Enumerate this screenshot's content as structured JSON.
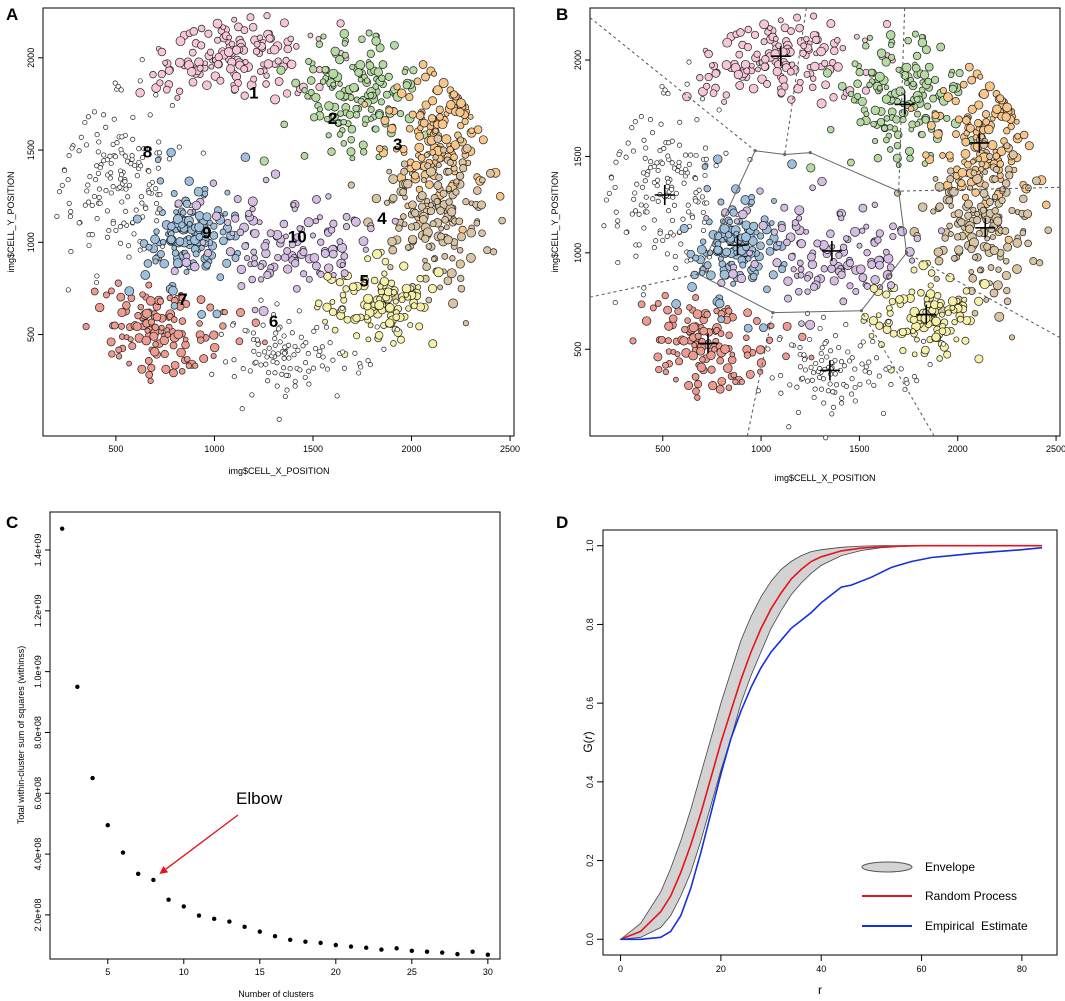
{
  "panels": {
    "a": "A",
    "b": "B",
    "c": "C",
    "d": "D"
  },
  "colors": {
    "c1": "#f7c6d9",
    "c2": "#b5dba2",
    "c3": "#f8c689",
    "c4": "#d9c5a4",
    "c5": "#f7f1a8",
    "c6": "#ffffff",
    "c7": "#ee9a8f",
    "c8": "#ffffff",
    "c9": "#9ec0dd",
    "c10": "#d6bde3",
    "random": "#e8141b",
    "empirical": "#1430e0",
    "envelope": "#d3d3d3",
    "arrow": "#e8141b"
  },
  "chart_data": [
    {
      "type": "scatter",
      "panel": "A",
      "title": "",
      "xlabel": "img$CELL_X_POSITION",
      "ylabel": "img$CELL_Y_POSITION",
      "xlim": [
        130,
        2520
      ],
      "ylim": [
        -50,
        2270
      ],
      "xticks": [
        "500",
        "1000",
        "1500",
        "2000",
        "2500"
      ],
      "xtick_values": [
        500,
        1000,
        1500,
        2000,
        2500
      ],
      "yticks": [
        "500",
        "1000",
        "1500",
        "2000"
      ],
      "ytick_values": [
        500,
        1000,
        1500,
        2000
      ],
      "clusters": [
        {
          "label": "1",
          "cx": 1120,
          "cy": 2010,
          "sx": 230,
          "sy": 110,
          "n": 150,
          "color": "c1",
          "label_x": 1200,
          "label_y": 1780
        },
        {
          "label": "2",
          "cx": 1730,
          "cy": 1760,
          "sx": 150,
          "sy": 170,
          "n": 150,
          "color": "c2",
          "label_x": 1600,
          "label_y": 1640
        },
        {
          "label": "3",
          "cx": 2110,
          "cy": 1560,
          "sx": 120,
          "sy": 190,
          "n": 150,
          "color": "c3",
          "label_x": 1930,
          "label_y": 1500
        },
        {
          "label": "4",
          "cx": 2140,
          "cy": 1130,
          "sx": 140,
          "sy": 190,
          "n": 150,
          "color": "c4",
          "label_x": 1850,
          "label_y": 1100
        },
        {
          "label": "5",
          "cx": 1850,
          "cy": 680,
          "sx": 140,
          "sy": 110,
          "n": 120,
          "color": "c5",
          "label_x": 1760,
          "label_y": 760
        },
        {
          "label": "6",
          "cx": 1360,
          "cy": 400,
          "sx": 190,
          "sy": 110,
          "n": 110,
          "color": "c6",
          "label_x": 1300,
          "label_y": 540
        },
        {
          "label": "7",
          "cx": 740,
          "cy": 540,
          "sx": 170,
          "sy": 130,
          "n": 130,
          "color": "c7",
          "label_x": 840,
          "label_y": 660
        },
        {
          "label": "8",
          "cx": 500,
          "cy": 1300,
          "sx": 150,
          "sy": 240,
          "n": 160,
          "color": "c8",
          "label_x": 660,
          "label_y": 1460
        },
        {
          "label": "9",
          "cx": 880,
          "cy": 1040,
          "sx": 130,
          "sy": 140,
          "n": 140,
          "color": "c9",
          "label_x": 960,
          "label_y": 1020
        },
        {
          "label": "10",
          "cx": 1360,
          "cy": 1010,
          "sx": 220,
          "sy": 150,
          "n": 120,
          "color": "c10",
          "label_x": 1420,
          "label_y": 1000
        }
      ]
    },
    {
      "type": "scatter",
      "panel": "B",
      "title": "",
      "xlabel": "img$CELL_X_POSITION",
      "ylabel": "img$CELL_Y_POSITION",
      "xlim": [
        130,
        2520
      ],
      "ylim": [
        50,
        2270
      ],
      "xticks": [
        "500",
        "1000",
        "1500",
        "2000",
        "2500"
      ],
      "xtick_values": [
        500,
        1000,
        1500,
        2000,
        2500
      ],
      "yticks": [
        "500",
        "1000",
        "1500",
        "2000"
      ],
      "ytick_values": [
        500,
        1000,
        1500,
        2000
      ],
      "centroids": [
        [
          1100,
          2020
        ],
        [
          1730,
          1770
        ],
        [
          2110,
          1570
        ],
        [
          2140,
          1130
        ],
        [
          1840,
          680
        ],
        [
          1350,
          390
        ],
        [
          730,
          530
        ],
        [
          510,
          1300
        ],
        [
          880,
          1040
        ],
        [
          1360,
          1010
        ]
      ],
      "hull": [
        [
          680,
          890
        ],
        [
          970,
          1530
        ],
        [
          1120,
          1510
        ],
        [
          1250,
          1520
        ],
        [
          1700,
          1320
        ],
        [
          1740,
          1000
        ],
        [
          1510,
          700
        ],
        [
          1060,
          690
        ],
        [
          680,
          890
        ]
      ],
      "voronoi_edges": [
        [
          [
            130,
            2220
          ],
          [
            970,
            1530
          ]
        ],
        [
          [
            1230,
            2270
          ],
          [
            1120,
            1510
          ]
        ],
        [
          [
            1730,
            2270
          ],
          [
            1700,
            1320
          ]
        ],
        [
          [
            2520,
            1340
          ],
          [
            1700,
            1320
          ]
        ],
        [
          [
            2520,
            560
          ],
          [
            1740,
            1000
          ]
        ],
        [
          [
            1880,
            50
          ],
          [
            1510,
            700
          ]
        ],
        [
          [
            930,
            50
          ],
          [
            1060,
            690
          ]
        ],
        [
          [
            130,
            770
          ],
          [
            680,
            890
          ]
        ]
      ]
    },
    {
      "type": "scatter",
      "panel": "C",
      "title": "",
      "xlabel": "Number of clusters",
      "ylabel": "Total within-cluster sum of squares (withinss)",
      "xlim": [
        1.2,
        30.8
      ],
      "ylim": [
        55000000,
        1525000000
      ],
      "xticks": [
        "5",
        "10",
        "15",
        "20",
        "25",
        "30"
      ],
      "xtick_values": [
        5,
        10,
        15,
        20,
        25,
        30
      ],
      "yticks": [
        "2.0e+08",
        "4.0e+08",
        "6.0e+08",
        "8.0e+08",
        "1.0e+09",
        "1.2e+09",
        "1.4e+09"
      ],
      "ytick_values": [
        200000000,
        400000000,
        600000000,
        800000000,
        1000000000,
        1200000000,
        1400000000
      ],
      "x": [
        2,
        3,
        4,
        5,
        6,
        7,
        8,
        9,
        10,
        11,
        12,
        13,
        14,
        15,
        16,
        17,
        18,
        19,
        20,
        21,
        22,
        23,
        24,
        25,
        26,
        27,
        28,
        29,
        30
      ],
      "y": [
        1470000000,
        950000000,
        650000000,
        495000000,
        405000000,
        335000000,
        315000000,
        250000000,
        228000000,
        198000000,
        187000000,
        178000000,
        161000000,
        145000000,
        130000000,
        118000000,
        112000000,
        108000000,
        101000000,
        96000000,
        92000000,
        86000000,
        90000000,
        82000000,
        79000000,
        76000000,
        71000000,
        79000000,
        69000000
      ],
      "annotation": {
        "text": "Elbow",
        "x": 8,
        "y": 315000000
      }
    },
    {
      "type": "line",
      "panel": "D",
      "title": "",
      "xlabel": "r",
      "ylabel_prefix": "G(",
      "ylabel_var": "r",
      "ylabel_suffix": ")",
      "xlim": [
        -3.5,
        87
      ],
      "ylim": [
        -0.04,
        1.04
      ],
      "xticks": [
        "0",
        "20",
        "40",
        "60",
        "80"
      ],
      "xtick_values": [
        0,
        20,
        40,
        60,
        80
      ],
      "yticks": [
        "0.0",
        "0.2",
        "0.4",
        "0.6",
        "0.8",
        "1.0"
      ],
      "ytick_values": [
        0,
        0.2,
        0.4,
        0.6,
        0.8,
        1.0
      ],
      "series": [
        {
          "name": "Random Process",
          "color": "random",
          "x": [
            0,
            4,
            8,
            10,
            12,
            14,
            16,
            18,
            20,
            22,
            24,
            26,
            28,
            30,
            32,
            34,
            36,
            38,
            40,
            44,
            48,
            52,
            56,
            60,
            70,
            84
          ],
          "y": [
            0,
            0.02,
            0.07,
            0.11,
            0.17,
            0.24,
            0.32,
            0.41,
            0.5,
            0.58,
            0.66,
            0.73,
            0.79,
            0.84,
            0.88,
            0.915,
            0.94,
            0.96,
            0.972,
            0.987,
            0.994,
            0.997,
            0.999,
            1.0,
            1.0,
            1.0
          ]
        },
        {
          "name": "Empirical Estimate",
          "color": "empirical",
          "x": [
            0,
            4,
            8,
            10,
            12,
            14,
            16,
            18,
            20,
            22,
            24,
            26,
            28,
            30,
            32,
            34,
            36,
            38,
            40,
            42,
            44,
            46,
            50,
            54,
            58,
            62,
            66,
            70,
            75,
            80,
            84
          ],
          "y": [
            0,
            0,
            0.005,
            0.02,
            0.06,
            0.13,
            0.22,
            0.32,
            0.42,
            0.51,
            0.58,
            0.64,
            0.69,
            0.73,
            0.76,
            0.79,
            0.81,
            0.83,
            0.855,
            0.875,
            0.895,
            0.9,
            0.92,
            0.945,
            0.96,
            0.97,
            0.975,
            0.98,
            0.985,
            0.99,
            0.995
          ]
        }
      ],
      "envelope": {
        "name": "Envelope",
        "x": [
          0,
          4,
          8,
          10,
          12,
          14,
          16,
          18,
          20,
          22,
          24,
          26,
          28,
          30,
          32,
          34,
          36,
          38,
          40,
          44,
          48,
          52,
          56,
          60,
          70,
          84
        ],
        "lower": [
          0,
          0.005,
          0.03,
          0.06,
          0.11,
          0.17,
          0.25,
          0.34,
          0.43,
          0.51,
          0.6,
          0.67,
          0.73,
          0.79,
          0.835,
          0.875,
          0.905,
          0.93,
          0.95,
          0.975,
          0.988,
          0.995,
          0.998,
          1.0,
          1.0,
          1.0
        ],
        "upper": [
          0,
          0.04,
          0.12,
          0.18,
          0.25,
          0.33,
          0.42,
          0.51,
          0.6,
          0.68,
          0.76,
          0.82,
          0.87,
          0.91,
          0.94,
          0.96,
          0.975,
          0.985,
          0.99,
          0.996,
          0.999,
          1.0,
          1.0,
          1.0,
          1.0,
          1.0
        ]
      },
      "legend": [
        "Envelope",
        "Random Process",
        "Empirical  Estimate"
      ],
      "legend_placement": "bottom-right"
    }
  ]
}
